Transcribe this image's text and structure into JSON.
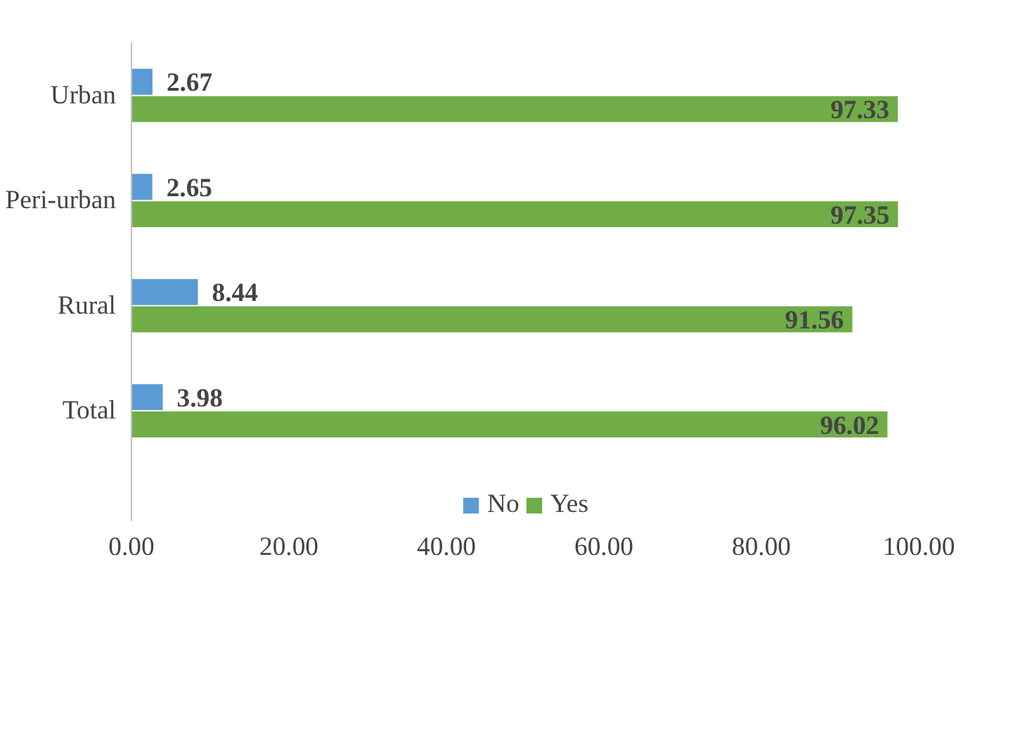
{
  "chart_data": {
    "type": "bar",
    "orientation": "horizontal",
    "categories": [
      "Urban",
      "Peri-urban",
      "Rural",
      "Total"
    ],
    "series": [
      {
        "name": "No",
        "color": "#5b9bd5",
        "values": [
          2.67,
          2.65,
          8.44,
          3.98
        ]
      },
      {
        "name": "Yes",
        "color": "#70ad47",
        "values": [
          97.33,
          97.35,
          91.56,
          96.02
        ]
      }
    ],
    "xlim": [
      0,
      100
    ],
    "xticks": [
      {
        "value": 0,
        "label": "0.00"
      },
      {
        "value": 20,
        "label": "20.00"
      },
      {
        "value": 40,
        "label": "40.00"
      },
      {
        "value": 60,
        "label": "60.00"
      },
      {
        "value": 80,
        "label": "80.00"
      },
      {
        "value": 100,
        "label": "100.00"
      }
    ],
    "data_labels": true,
    "grid": false,
    "legend": "bottom"
  }
}
